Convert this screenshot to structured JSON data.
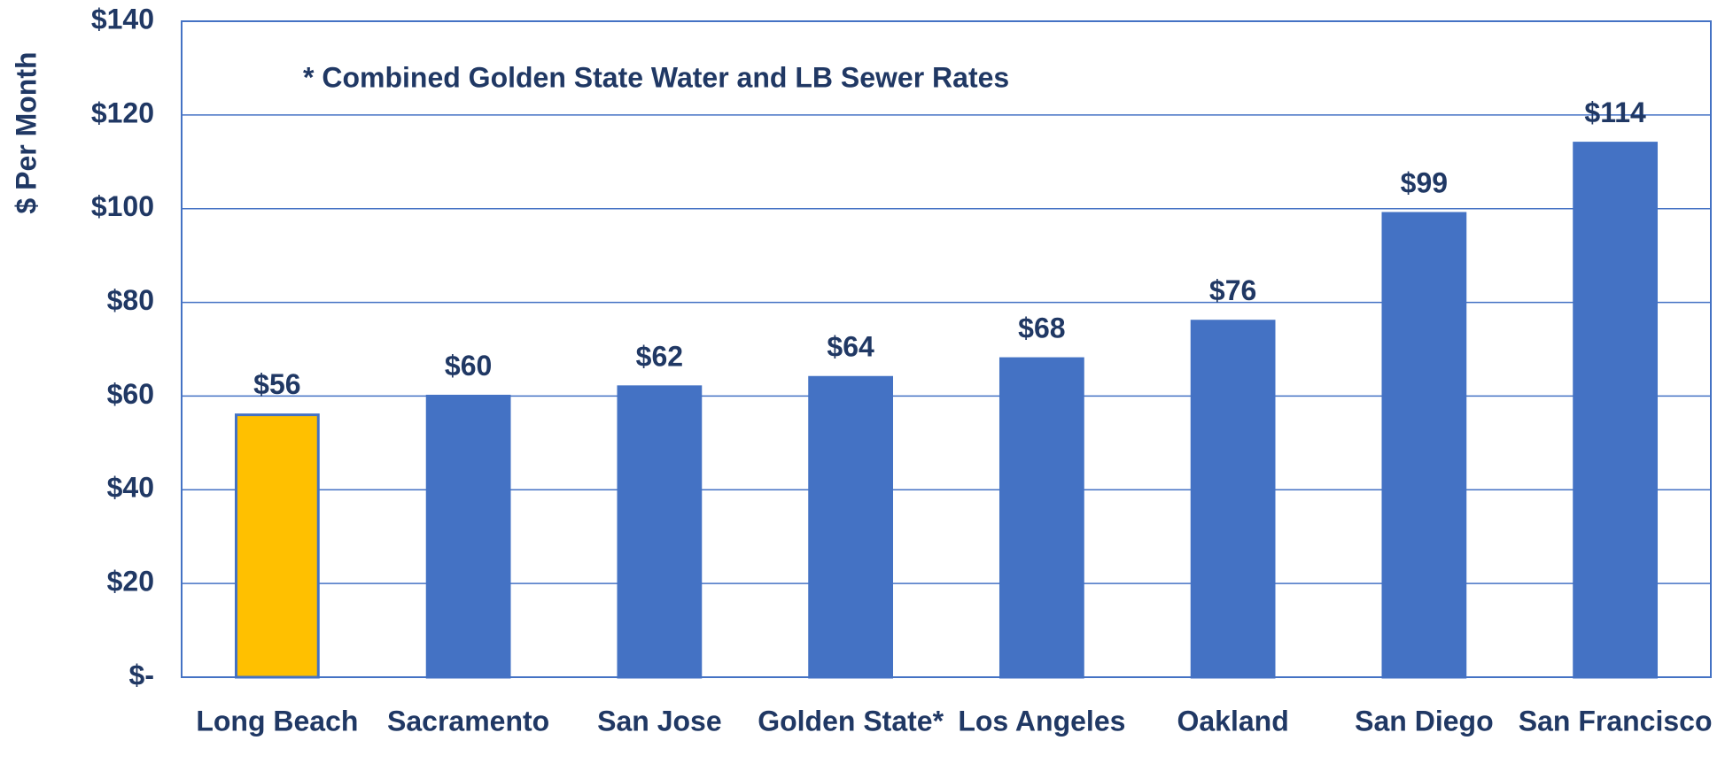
{
  "chart_data": {
    "type": "bar",
    "y_label": "$ Per Month",
    "annotation": "* Combined Golden State Water and LB Sewer Rates",
    "categories": [
      "Long Beach",
      "Sacramento",
      "San Jose",
      "Golden State*",
      "Los Angeles",
      "Oakland",
      "San Diego",
      "San Francisco"
    ],
    "values": [
      56,
      60,
      62,
      64,
      68,
      76,
      99,
      114
    ],
    "value_labels": [
      "$56",
      "$60",
      "$62",
      "$64",
      "$68",
      "$76",
      "$99",
      "$114"
    ],
    "colors": [
      "#ffc000",
      "#4472c4",
      "#4472c4",
      "#4472c4",
      "#4472c4",
      "#4472c4",
      "#4472c4",
      "#4472c4"
    ],
    "ylim": [
      0,
      140
    ],
    "yticks": [
      {
        "value": 0,
        "label": "$-"
      },
      {
        "value": 20,
        "label": "$20"
      },
      {
        "value": 40,
        "label": "$40"
      },
      {
        "value": 60,
        "label": "$60"
      },
      {
        "value": 80,
        "label": "$80"
      },
      {
        "value": 100,
        "label": "$100"
      },
      {
        "value": 120,
        "label": "$120"
      },
      {
        "value": 140,
        "label": "$140"
      }
    ],
    "grid": true
  }
}
